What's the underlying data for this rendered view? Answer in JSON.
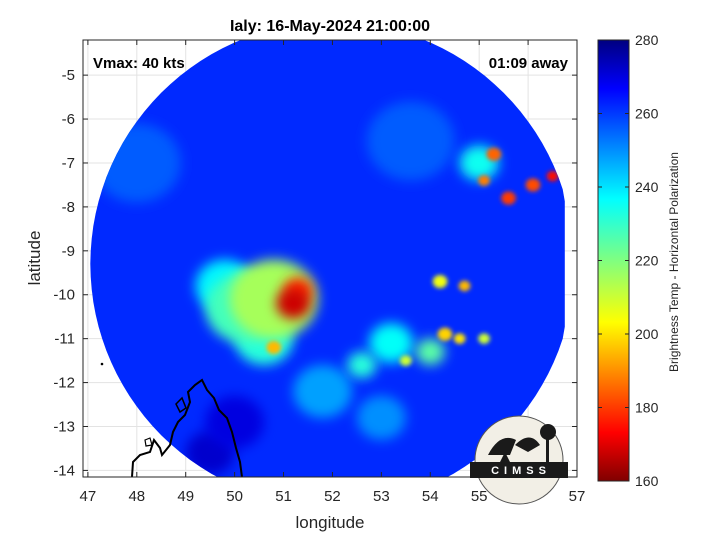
{
  "chart_data": {
    "type": "heatmap",
    "title": "Ialy: 16-May-2024 21:00:00",
    "xlabel": "longitude",
    "ylabel": "latitude",
    "xlim": [
      46.9,
      57.0
    ],
    "ylim": [
      -14.15,
      -4.2
    ],
    "x_ticks": [
      47,
      48,
      49,
      50,
      51,
      52,
      53,
      54,
      55,
      56,
      57
    ],
    "y_ticks": [
      -5,
      -6,
      -7,
      -8,
      -9,
      -10,
      -11,
      -12,
      -13,
      -14
    ],
    "grid": true,
    "annotations": {
      "vmax": "Vmax: 40 kts",
      "time_away": "01:09 away"
    },
    "colorbar": {
      "label": "Brightness Temp - Horizontal Polarization",
      "min": 160,
      "max": 280,
      "ticks": [
        280,
        260,
        240,
        220,
        200,
        180,
        160
      ],
      "colormap": "jet"
    },
    "swath_center": [
      52.0,
      -9.3
    ],
    "background_temp": 262,
    "features": [
      {
        "lon": 51.2,
        "lat": -10.2,
        "temp": 168,
        "size": 0.35
      },
      {
        "lon": 51.3,
        "lat": -9.9,
        "temp": 178,
        "size": 0.3
      },
      {
        "lon": 50.8,
        "lat": -10.1,
        "temp": 215,
        "size": 0.9
      },
      {
        "lon": 50.2,
        "lat": -10.3,
        "temp": 228,
        "size": 0.8
      },
      {
        "lon": 50.6,
        "lat": -11.0,
        "temp": 232,
        "size": 0.6
      },
      {
        "lon": 50.8,
        "lat": -11.2,
        "temp": 195,
        "size": 0.15
      },
      {
        "lon": 49.8,
        "lat": -9.8,
        "temp": 238,
        "size": 0.6
      },
      {
        "lon": 55.3,
        "lat": -6.8,
        "temp": 185,
        "size": 0.15
      },
      {
        "lon": 55.6,
        "lat": -7.8,
        "temp": 180,
        "size": 0.15
      },
      {
        "lon": 55.1,
        "lat": -7.4,
        "temp": 188,
        "size": 0.12
      },
      {
        "lon": 56.1,
        "lat": -7.5,
        "temp": 182,
        "size": 0.15
      },
      {
        "lon": 56.5,
        "lat": -7.3,
        "temp": 175,
        "size": 0.12
      },
      {
        "lon": 55.0,
        "lat": -7.0,
        "temp": 235,
        "size": 0.4
      },
      {
        "lon": 54.2,
        "lat": -9.7,
        "temp": 205,
        "size": 0.15
      },
      {
        "lon": 54.7,
        "lat": -9.8,
        "temp": 195,
        "size": 0.12
      },
      {
        "lon": 54.3,
        "lat": -10.9,
        "temp": 198,
        "size": 0.15
      },
      {
        "lon": 54.6,
        "lat": -11.0,
        "temp": 200,
        "size": 0.12
      },
      {
        "lon": 55.1,
        "lat": -11.0,
        "temp": 210,
        "size": 0.12
      },
      {
        "lon": 53.5,
        "lat": -11.5,
        "temp": 210,
        "size": 0.12
      },
      {
        "lon": 54.0,
        "lat": -11.3,
        "temp": 225,
        "size": 0.3
      },
      {
        "lon": 52.6,
        "lat": -11.6,
        "temp": 232,
        "size": 0.3
      },
      {
        "lon": 53.2,
        "lat": -11.1,
        "temp": 236,
        "size": 0.45
      },
      {
        "lon": 51.8,
        "lat": -12.2,
        "temp": 248,
        "size": 0.6
      },
      {
        "lon": 53.0,
        "lat": -12.8,
        "temp": 250,
        "size": 0.5
      },
      {
        "lon": 50.0,
        "lat": -12.9,
        "temp": 270,
        "size": 0.6
      },
      {
        "lon": 49.5,
        "lat": -13.6,
        "temp": 272,
        "size": 0.5
      },
      {
        "lon": 48.0,
        "lat": -7.0,
        "temp": 256,
        "size": 0.9
      },
      {
        "lon": 53.6,
        "lat": -6.5,
        "temp": 256,
        "size": 0.9
      }
    ]
  },
  "logo": {
    "text": "CIMSS"
  }
}
